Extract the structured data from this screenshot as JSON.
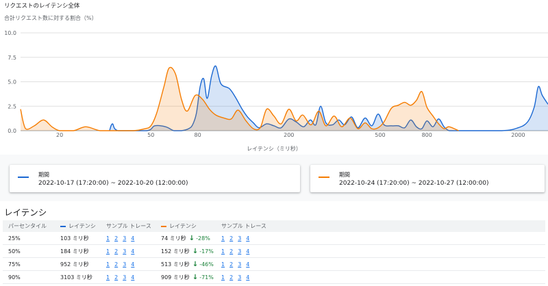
{
  "header": {
    "title": "リクエストのレイテンシ全体",
    "y_axis_label": "合計リクエスト数に対する割合（%）",
    "x_axis_label": "レイテンシ（ミリ秒）"
  },
  "colors": {
    "series1": "#1967d2",
    "series2": "#f57c00"
  },
  "chart_data": {
    "type": "area",
    "xlabel": "レイテンシ（ミリ秒）",
    "ylabel": "合計リクエスト数に対する割合（%）",
    "x_scale": "log",
    "y_ticks": [
      "10.0",
      "7.5",
      "5.0",
      "2.5",
      "0.0"
    ],
    "x_ticks": [
      "20",
      "50",
      "80",
      "200",
      "500",
      "800",
      "2000"
    ],
    "ylim": [
      0,
      10
    ],
    "xlim": [
      13.5,
      2700
    ],
    "series": [
      {
        "name": "2022-10-17 (17:20:00) ~ 2022-10-20 (12:00:00)",
        "x": [
          33,
          34,
          36,
          48,
          52,
          58,
          63,
          68,
          73,
          76,
          79,
          82,
          85,
          88,
          92,
          96,
          101,
          110,
          117,
          125,
          132,
          140,
          148,
          160,
          172,
          185,
          200,
          215,
          232,
          248,
          262,
          275,
          290,
          310,
          330,
          350,
          375,
          400,
          430,
          460,
          490,
          520,
          560,
          600,
          640,
          680,
          720,
          760,
          800,
          850,
          900,
          950,
          1000,
          1050,
          1100,
          1700,
          2000,
          2200,
          2350,
          2450,
          2550,
          2700
        ],
        "y": [
          0,
          0.7,
          0,
          0,
          0.5,
          0.4,
          0,
          0,
          0.2,
          0.6,
          1.8,
          4.5,
          5.3,
          3.3,
          5.6,
          6.6,
          4.8,
          4.3,
          3.4,
          2.2,
          1.4,
          0.8,
          0.3,
          0.7,
          0.5,
          0.3,
          1.2,
          0.9,
          0.4,
          1.1,
          0.6,
          2.5,
          0.8,
          0.6,
          1.1,
          0.6,
          1.4,
          0.3,
          1.3,
          0.5,
          1.7,
          0.6,
          0.5,
          0.5,
          0.3,
          1.1,
          0.4,
          0.2,
          1.0,
          0.4,
          1.2,
          0.4,
          0,
          0,
          0,
          0,
          0.3,
          0.9,
          2.4,
          4.5,
          3.6,
          2.7
        ]
      },
      {
        "name": "2022-10-24 (17:20:00) ~ 2022-10-27 (12:00:00)",
        "x": [
          13.5,
          14.2,
          15.5,
          17,
          18.5,
          20,
          23,
          26,
          30,
          35,
          42,
          47,
          50,
          53,
          57,
          60,
          64,
          68,
          72,
          78,
          84,
          90,
          96,
          104,
          112,
          120,
          130,
          140,
          150,
          160,
          172,
          185,
          200,
          215,
          230,
          250,
          270,
          290,
          315,
          340,
          370,
          400,
          430,
          460,
          490,
          520,
          560,
          600,
          640,
          680,
          720,
          760,
          800,
          850,
          900,
          950,
          1000,
          1100
        ],
        "y": [
          2.2,
          0.2,
          0.5,
          1.1,
          0.4,
          0,
          0,
          0.4,
          0,
          0,
          0,
          0.2,
          0.5,
          1.8,
          4.5,
          6.4,
          5.8,
          3.2,
          2.0,
          3.6,
          3.2,
          2.2,
          1.6,
          1.3,
          1.2,
          2.1,
          1.0,
          0.2,
          0.3,
          2.2,
          1.5,
          0.7,
          2.2,
          1.0,
          1.6,
          0.6,
          2.0,
          0.5,
          1.5,
          0.4,
          1.3,
          0.2,
          0.8,
          0.2,
          0.3,
          0.9,
          2.3,
          2.6,
          2.9,
          2.6,
          3.1,
          4.0,
          2.4,
          1.5,
          0.7,
          0.2,
          0.4,
          0
        ]
      }
    ]
  },
  "legend": {
    "period_caption": "期間",
    "range1": "2022-10-17 (17:20:00) ~ 2022-10-20 (12:00:00)",
    "range2": "2022-10-24 (17:20:00) ~ 2022-10-27 (12:00:00)"
  },
  "latency": {
    "section_title": "レイテンシ",
    "headers": {
      "percentile": "パーセンタイル",
      "latency1": "レイテンシ",
      "traces1": "サンプル トレース",
      "latency2": "レイテンシ",
      "traces2": "サンプル トレース"
    },
    "rows": [
      {
        "percentile": "25%",
        "latency1": "103 ミリ秒",
        "latency2": "74 ミリ秒",
        "change": "-28%",
        "links1": [
          "1",
          "2",
          "3",
          "4"
        ],
        "links2": [
          "1",
          "2",
          "3",
          "4"
        ]
      },
      {
        "percentile": "50%",
        "latency1": "184 ミリ秒",
        "latency2": "152 ミリ秒",
        "change": "-17%",
        "links1": [
          "1",
          "2",
          "3",
          "4"
        ],
        "links2": [
          "1",
          "2",
          "3",
          "4"
        ]
      },
      {
        "percentile": "75%",
        "latency1": "952 ミリ秒",
        "latency2": "513 ミリ秒",
        "change": "-46%",
        "links1": [
          "1",
          "2",
          "3",
          "4"
        ],
        "links2": [
          "1",
          "2",
          "3",
          "4"
        ]
      },
      {
        "percentile": "90%",
        "latency1": "3103 ミリ秒",
        "latency2": "909 ミリ秒",
        "change": "-71%",
        "links1": [
          "1",
          "2",
          "3",
          "4"
        ],
        "links2": [
          "1",
          "2",
          "3",
          "4"
        ]
      }
    ]
  },
  "icons": {
    "decrease": "arrow-down-icon"
  }
}
